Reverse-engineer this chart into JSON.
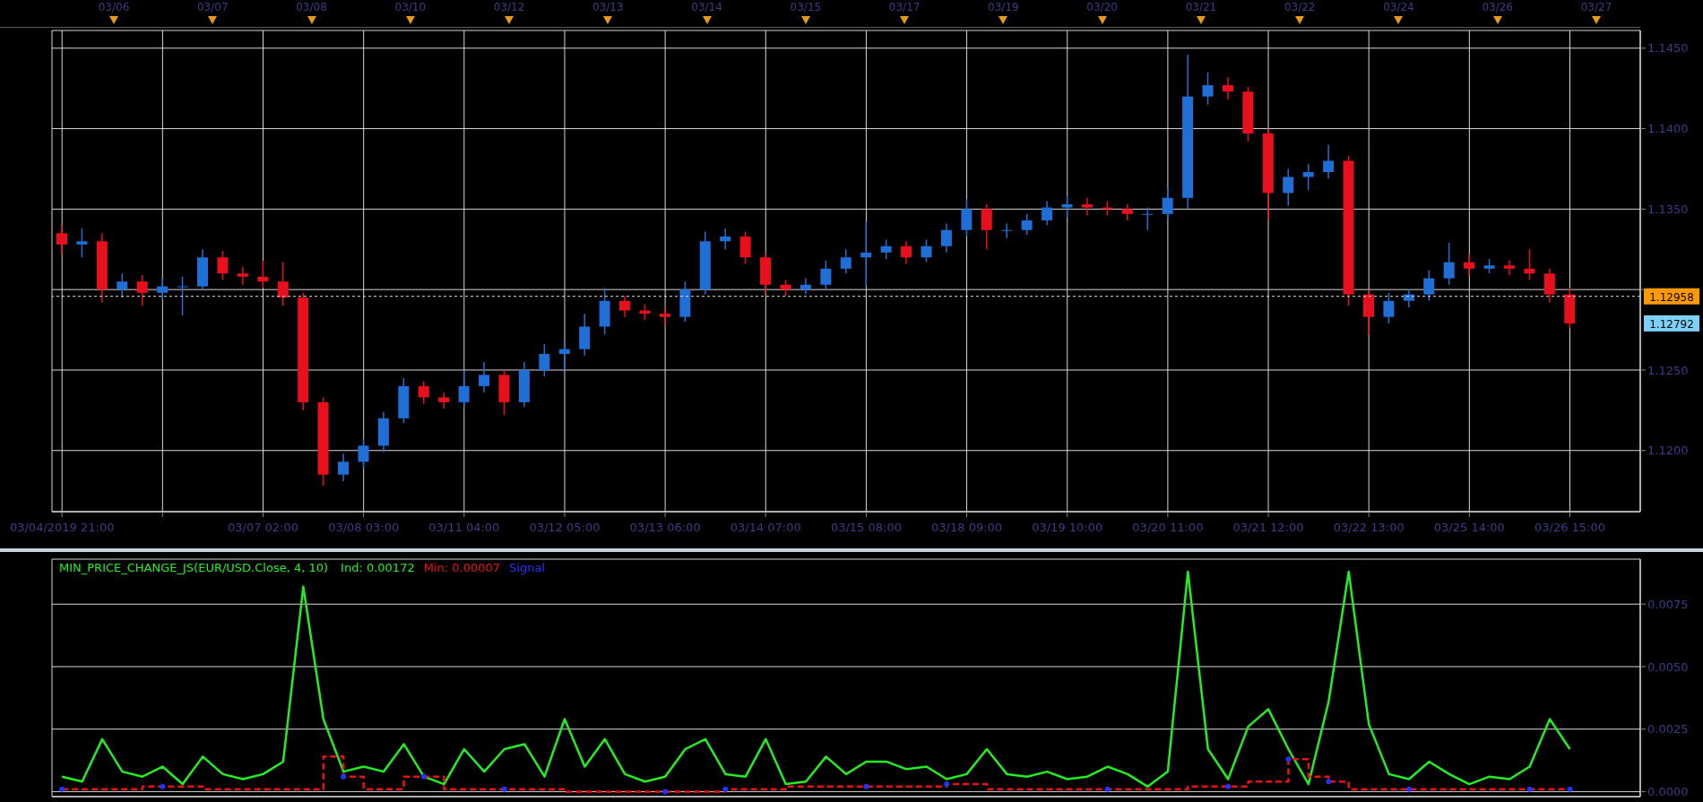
{
  "chart_data": [
    {
      "type": "candlestick",
      "categories": [
        "03/04/2019 21:00",
        null,
        null,
        null,
        null,
        null,
        null,
        null,
        null,
        null,
        "03/07 02:00",
        null,
        null,
        null,
        null,
        "03/08 03:00",
        null,
        null,
        null,
        null,
        "03/11 04:00",
        null,
        null,
        null,
        null,
        "03/12 05:00",
        null,
        null,
        null,
        null,
        "03/13 06:00",
        null,
        null,
        null,
        null,
        "03/14 07:00",
        null,
        null,
        null,
        null,
        "03/15 08:00",
        null,
        null,
        null,
        null,
        "03/18 09:00",
        null,
        null,
        null,
        null,
        "03/19 10:00",
        null,
        null,
        null,
        null,
        "03/20 11:00",
        null,
        null,
        null,
        null,
        "03/21 12:00",
        null,
        null,
        null,
        null,
        "03/22 13:00",
        null,
        null,
        null,
        null,
        "03/25 14:00",
        null,
        null,
        null,
        null,
        "03/26 15:00",
        null,
        null,
        null
      ],
      "ohlc": [
        [
          1.1335,
          1.134,
          1.1322,
          1.1328
        ],
        [
          1.1328,
          1.1338,
          1.132,
          1.133
        ],
        [
          1.133,
          1.1335,
          1.1292,
          1.13
        ],
        [
          1.13,
          1.131,
          1.1295,
          1.1305
        ],
        [
          1.1305,
          1.1309,
          1.129,
          1.1298
        ],
        [
          1.1298,
          1.1307,
          1.1294,
          1.1302
        ],
        [
          1.1302,
          1.1308,
          1.1284,
          1.1302
        ],
        [
          1.1302,
          1.1325,
          1.13,
          1.132
        ],
        [
          1.132,
          1.1324,
          1.1306,
          1.131
        ],
        [
          1.131,
          1.1314,
          1.1303,
          1.1308
        ],
        [
          1.1308,
          1.1318,
          1.1301,
          1.1305
        ],
        [
          1.1305,
          1.1317,
          1.129,
          1.1295
        ],
        [
          1.1295,
          1.1298,
          1.1225,
          1.123
        ],
        [
          1.123,
          1.1233,
          1.1178,
          1.1185
        ],
        [
          1.1185,
          1.1198,
          1.1181,
          1.1193
        ],
        [
          1.1193,
          1.1207,
          1.1189,
          1.1203
        ],
        [
          1.1203,
          1.1224,
          1.1199,
          1.122
        ],
        [
          1.122,
          1.1245,
          1.1217,
          1.124
        ],
        [
          1.124,
          1.1243,
          1.1229,
          1.1233
        ],
        [
          1.1233,
          1.1236,
          1.1226,
          1.123
        ],
        [
          1.123,
          1.125,
          1.1227,
          1.124
        ],
        [
          1.124,
          1.1255,
          1.1236,
          1.1247
        ],
        [
          1.1247,
          1.125,
          1.1222,
          1.123
        ],
        [
          1.123,
          1.1255,
          1.1227,
          1.125
        ],
        [
          1.125,
          1.1266,
          1.1246,
          1.126
        ],
        [
          1.126,
          1.1268,
          1.125,
          1.1263
        ],
        [
          1.1263,
          1.1285,
          1.1259,
          1.1277
        ],
        [
          1.1277,
          1.1301,
          1.1272,
          1.1293
        ],
        [
          1.1293,
          1.1296,
          1.1283,
          1.1287
        ],
        [
          1.1287,
          1.1291,
          1.1281,
          1.1285
        ],
        [
          1.1285,
          1.1289,
          1.1278,
          1.1283
        ],
        [
          1.1283,
          1.1305,
          1.128,
          1.13
        ],
        [
          1.13,
          1.1336,
          1.1297,
          1.133
        ],
        [
          1.133,
          1.1338,
          1.1325,
          1.1333
        ],
        [
          1.1333,
          1.1336,
          1.1316,
          1.132
        ],
        [
          1.132,
          1.1323,
          1.1297,
          1.1303
        ],
        [
          1.1303,
          1.1306,
          1.1296,
          1.13
        ],
        [
          1.13,
          1.1307,
          1.1297,
          1.1303
        ],
        [
          1.1303,
          1.1318,
          1.13,
          1.1313
        ],
        [
          1.1313,
          1.1325,
          1.131,
          1.132
        ],
        [
          1.132,
          1.1342,
          1.1302,
          1.1323
        ],
        [
          1.1323,
          1.1331,
          1.1319,
          1.1327
        ],
        [
          1.1327,
          1.133,
          1.1316,
          1.132
        ],
        [
          1.132,
          1.1331,
          1.1317,
          1.1327
        ],
        [
          1.1327,
          1.1341,
          1.1323,
          1.1337
        ],
        [
          1.1337,
          1.1356,
          1.1333,
          1.135
        ],
        [
          1.135,
          1.1353,
          1.1325,
          1.1337
        ],
        [
          1.1337,
          1.1341,
          1.1332,
          1.1337
        ],
        [
          1.1337,
          1.1347,
          1.1334,
          1.1343
        ],
        [
          1.1343,
          1.1355,
          1.134,
          1.1351
        ],
        [
          1.1351,
          1.1358,
          1.1345,
          1.1353
        ],
        [
          1.1353,
          1.1357,
          1.1346,
          1.1351
        ],
        [
          1.1351,
          1.1355,
          1.1346,
          1.135
        ],
        [
          1.135,
          1.1353,
          1.1343,
          1.1347
        ],
        [
          1.1347,
          1.1351,
          1.1337,
          1.1347
        ],
        [
          1.1347,
          1.1363,
          1.1344,
          1.1357
        ],
        [
          1.1357,
          1.1446,
          1.135,
          1.142
        ],
        [
          1.142,
          1.1435,
          1.1415,
          1.1427
        ],
        [
          1.1427,
          1.1432,
          1.1418,
          1.1423
        ],
        [
          1.1423,
          1.1426,
          1.1392,
          1.1397
        ],
        [
          1.1397,
          1.14,
          1.1343,
          1.136
        ],
        [
          1.136,
          1.1375,
          1.1352,
          1.137
        ],
        [
          1.137,
          1.1378,
          1.1362,
          1.1373
        ],
        [
          1.1373,
          1.139,
          1.1369,
          1.138
        ],
        [
          1.138,
          1.1383,
          1.129,
          1.1297
        ],
        [
          1.1297,
          1.13,
          1.1272,
          1.1283
        ],
        [
          1.1283,
          1.1298,
          1.1279,
          1.1293
        ],
        [
          1.1293,
          1.13,
          1.1289,
          1.1297
        ],
        [
          1.1297,
          1.1312,
          1.1293,
          1.1307
        ],
        [
          1.1307,
          1.1329,
          1.1303,
          1.1317
        ],
        [
          1.1317,
          1.1322,
          1.1309,
          1.1313
        ],
        [
          1.1313,
          1.1319,
          1.131,
          1.1315
        ],
        [
          1.1315,
          1.1318,
          1.1309,
          1.1313
        ],
        [
          1.1313,
          1.1325,
          1.1306,
          1.131
        ],
        [
          1.131,
          1.1313,
          1.1292,
          1.1297
        ],
        [
          1.1297,
          1.1301,
          1.1276,
          1.1279
        ],
        null,
        null,
        null
      ],
      "colors": [
        "#e8101c",
        "#1f6fd6",
        "#e8101c",
        "#1f6fd6",
        "#e8101c",
        "#1f6fd6",
        "#1f6fd6",
        "#1f6fd6",
        "#e8101c",
        "#e8101c",
        "#e8101c",
        "#e8101c",
        "#e8101c",
        "#e8101c",
        "#1f6fd6",
        "#1f6fd6",
        "#1f6fd6",
        "#1f6fd6",
        "#e8101c",
        "#e8101c",
        "#1f6fd6",
        "#1f6fd6",
        "#e8101c",
        "#1f6fd6",
        "#1f6fd6",
        "#1f6fd6",
        "#1f6fd6",
        "#1f6fd6",
        "#e8101c",
        "#e8101c",
        "#e8101c",
        "#1f6fd6",
        "#1f6fd6",
        "#1f6fd6",
        "#e8101c",
        "#e8101c",
        "#e8101c",
        "#1f6fd6",
        "#1f6fd6",
        "#1f6fd6",
        "#1f6fd6",
        "#1f6fd6",
        "#e8101c",
        "#1f6fd6",
        "#1f6fd6",
        "#1f6fd6",
        "#e8101c",
        "#1f6fd6",
        "#1f6fd6",
        "#1f6fd6",
        "#1f6fd6",
        "#e8101c",
        "#e8101c",
        "#e8101c",
        "#1f6fd6",
        "#1f6fd6",
        "#1f6fd6",
        "#1f6fd6",
        "#e8101c",
        "#e8101c",
        "#e8101c",
        "#1f6fd6",
        "#1f6fd6",
        "#1f6fd6",
        "#e8101c",
        "#e8101c",
        "#1f6fd6",
        "#1f6fd6",
        "#1f6fd6",
        "#1f6fd6",
        "#e8101c",
        "#1f6fd6",
        "#e8101c",
        "#e8101c",
        "#e8101c",
        "#e8101c",
        null,
        null,
        null
      ],
      "ylim": [
        1.1162,
        1.1461
      ],
      "yticks": [
        {
          "value": 1.12,
          "label": "1.1200"
        },
        {
          "value": 1.125,
          "label": "1.1250"
        },
        {
          "value": 1.13,
          "label": null
        },
        {
          "value": 1.135,
          "label": "1.1350"
        },
        {
          "value": 1.14,
          "label": "1.1400"
        },
        {
          "value": 1.145,
          "label": "1.1450"
        }
      ],
      "grid": true,
      "ref_lines": [
        {
          "axis": "y",
          "value": 1.12958,
          "label": "1.12958",
          "color": "#e0e0e0",
          "line_style": "dotted"
        }
      ],
      "annotations": [
        "03/06",
        "03/07",
        "03/08",
        "03/10",
        "03/12",
        "03/13",
        "03/14",
        "03/15",
        "03/17",
        "03/19",
        "03/20",
        "03/21",
        "03/22",
        "03/24",
        "03/26",
        "03/27",
        "1.12792"
      ]
    },
    {
      "type": "line",
      "title": "MIN_PRICE_CHANGE_JS(EUR/USD.Close, 4, 10)",
      "categories": [
        null,
        null,
        null,
        null,
        null,
        null,
        null,
        null,
        null,
        null,
        null,
        null,
        null,
        null,
        null,
        null,
        null,
        null,
        null,
        null,
        null,
        null,
        null,
        null,
        null,
        null,
        null,
        null,
        null,
        null,
        null,
        null,
        null,
        null,
        null,
        null,
        null,
        null,
        null,
        null,
        null,
        null,
        null,
        null,
        null,
        null,
        null,
        null,
        null,
        null,
        null,
        null,
        null,
        null,
        null,
        null,
        null,
        null,
        null,
        null,
        null,
        null,
        null,
        null,
        null,
        null,
        null,
        null,
        null,
        null,
        null,
        null,
        null,
        null,
        null,
        null,
        null,
        null,
        null
      ],
      "series": [
        {
          "name": "Ind: 0.00172",
          "type": "line",
          "color": "#22ee22",
          "values": [
            0.0006,
            0.0004,
            0.0021,
            0.0008,
            0.0006,
            0.001,
            0.0003,
            0.0014,
            0.0007,
            0.0005,
            0.0007,
            0.0012,
            0.0082,
            0.0029,
            0.0008,
            0.001,
            0.0008,
            0.0019,
            0.0006,
            0.0003,
            0.0017,
            0.0008,
            0.0017,
            0.0019,
            0.0006,
            0.0029,
            0.001,
            0.0021,
            0.0007,
            0.0004,
            0.0006,
            0.0017,
            0.0021,
            0.0007,
            0.0006,
            0.0021,
            0.0003,
            0.0004,
            0.0014,
            0.0007,
            0.0012,
            0.0012,
            0.0009,
            0.001,
            0.0005,
            0.0007,
            0.0017,
            0.0007,
            0.0006,
            0.0008,
            0.0005,
            0.0006,
            0.001,
            0.0007,
            0.0002,
            0.0008,
            0.0088,
            0.0017,
            0.0005,
            0.0026,
            0.0033,
            0.0017,
            0.0003,
            0.0036,
            0.0088,
            0.0027,
            0.0007,
            0.0005,
            0.0012,
            0.0007,
            0.0003,
            0.0006,
            0.0005,
            0.001,
            0.0029,
            0.0017,
            null,
            null,
            null
          ]
        },
        {
          "name": "Min: 0.00007",
          "type": "step",
          "color": "#ee1111",
          "line_style": "dashed",
          "values": [
            0.0001,
            0.0001,
            0.0001,
            0.0001,
            0.0002,
            0.0002,
            0.0002,
            0.0001,
            0.0001,
            0.0001,
            0.0001,
            0.0001,
            0.0001,
            0.0014,
            0.0006,
            0.0001,
            0.0001,
            0.0006,
            0.0006,
            0.0001,
            0.0001,
            0.0001,
            0.0001,
            0.0001,
            0.0001,
            0.0,
            0.0,
            0.0,
            0.0,
            0.0,
            0.0,
            0.0,
            0.0,
            0.0001,
            0.0001,
            0.0001,
            0.0002,
            0.0002,
            0.0002,
            0.0002,
            0.0002,
            0.0002,
            0.0002,
            0.0002,
            0.0003,
            0.0003,
            0.0001,
            0.0001,
            0.0001,
            0.0001,
            0.0001,
            0.0001,
            0.0001,
            0.0001,
            0.0001,
            0.0001,
            0.0002,
            0.0002,
            0.0002,
            0.0004,
            0.0004,
            0.0013,
            0.0006,
            0.0004,
            0.0001,
            0.0001,
            0.0001,
            0.0001,
            0.0001,
            0.0001,
            0.0001,
            0.0001,
            0.0001,
            0.0001,
            0.0001,
            0.0001,
            null,
            null,
            null
          ]
        },
        {
          "name": "Signal",
          "type": "scatter",
          "color": "#2233ff",
          "marker": "circle",
          "values": [
            0.0001,
            null,
            null,
            null,
            null,
            0.0002,
            null,
            null,
            null,
            null,
            null,
            null,
            null,
            null,
            0.0006,
            null,
            null,
            null,
            0.0006,
            null,
            null,
            null,
            0.0001,
            null,
            null,
            null,
            null,
            null,
            null,
            null,
            0.0,
            null,
            null,
            0.0001,
            null,
            null,
            null,
            null,
            null,
            null,
            0.0002,
            null,
            null,
            null,
            0.0003,
            null,
            null,
            null,
            null,
            null,
            null,
            null,
            0.0001,
            null,
            null,
            null,
            null,
            null,
            0.0002,
            null,
            null,
            0.0013,
            null,
            0.0004,
            null,
            null,
            null,
            0.0001,
            null,
            null,
            null,
            null,
            null,
            0.0001,
            null,
            0.0001,
            null,
            null,
            null
          ]
        }
      ],
      "ylim": [
        -0.0002,
        0.0093
      ],
      "yticks": [
        {
          "value": 0,
          "label": "0.0000"
        },
        {
          "value": 0.0025,
          "label": "0.0025"
        },
        {
          "value": 0.005,
          "label": "0.0050"
        },
        {
          "value": 0.0075,
          "label": "0.0075"
        }
      ],
      "grid": true,
      "legend": "top left",
      "tick_labels": "y"
    }
  ]
}
